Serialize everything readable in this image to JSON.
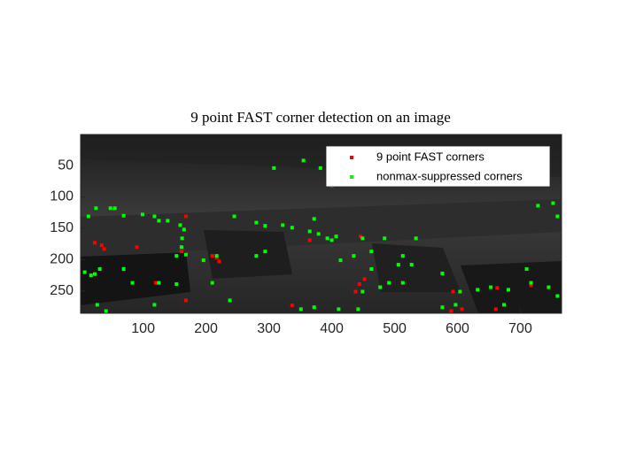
{
  "chart_data": {
    "type": "scatter",
    "title": "9 point FAST corner detection on an image",
    "xlim": [
      0.5,
      765.5
    ],
    "ylim": [
      0.5,
      285.5
    ],
    "ydir": "reverse",
    "xticks": [
      100,
      200,
      300,
      400,
      500,
      600,
      700
    ],
    "yticks": [
      50,
      100,
      150,
      200,
      250
    ],
    "legend": "northeast",
    "series": [
      {
        "name": "9 point FAST corners",
        "color": "#ff0000",
        "x": [
          23,
          34,
          38,
          120,
          168,
          210,
          217,
          221,
          337,
          365,
          446,
          452,
          444,
          438,
          593,
          607,
          590,
          663,
          717,
          661,
          161,
          90,
          168,
          407
        ],
        "y": [
          173,
          177,
          183,
          237,
          265,
          194,
          197,
          203,
          273,
          169,
          163,
          231,
          239,
          251,
          251,
          279,
          282,
          245,
          241,
          279,
          187,
          180,
          131,
          163
        ]
      },
      {
        "name": "nonmax-suppressed corners",
        "color": "#00ff00",
        "x": [
          25,
          48,
          55,
          13,
          7,
          23,
          17,
          69,
          99,
          118,
          125,
          139,
          159,
          165,
          162,
          161,
          153,
          168,
          245,
          280,
          294,
          322,
          337,
          365,
          379,
          393,
          400,
          407,
          372,
          449,
          484,
          463,
          435,
          414,
          294,
          280,
          196,
          217,
          125,
          153,
          210,
          238,
          118,
          27,
          41,
          351,
          372,
          411,
          442,
          491,
          506,
          513,
          527,
          576,
          604,
          632,
          653,
          681,
          717,
          745,
          759,
          710,
          597,
          576,
          674,
          752,
          728,
          759,
          308,
          355,
          382,
          400,
          449,
          477,
          534,
          463,
          513,
          83,
          69,
          31
        ],
        "y": [
          118,
          118,
          118,
          131,
          220,
          223,
          225,
          130,
          128,
          131,
          138,
          138,
          145,
          152,
          166,
          180,
          194,
          192,
          131,
          141,
          146,
          145,
          149,
          155,
          159,
          166,
          169,
          163,
          135,
          166,
          166,
          187,
          194,
          201,
          187,
          194,
          201,
          194,
          237,
          239,
          237,
          265,
          272,
          272,
          282,
          279,
          276,
          279,
          279,
          237,
          208,
          194,
          208,
          222,
          251,
          248,
          244,
          248,
          237,
          244,
          258,
          215,
          272,
          276,
          272,
          110,
          114,
          131,
          54,
          42,
          54,
          82,
          251,
          244,
          166,
          215,
          237,
          237,
          215,
          215
        ]
      }
    ]
  }
}
